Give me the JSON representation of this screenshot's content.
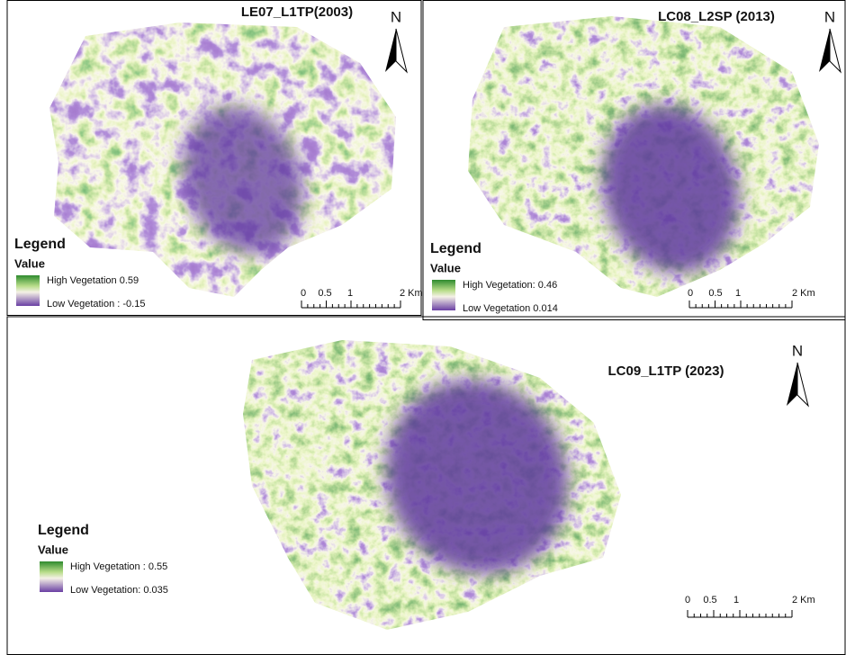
{
  "panels": [
    {
      "title": "LE07_L1TP(2003)",
      "north": "N",
      "legend": {
        "title": "Legend",
        "subtitle": "Value",
        "high": "High Vegetation 0.59",
        "low": "Low Vegetation : -0.15"
      },
      "scale": [
        "0",
        "0.5",
        "1",
        "2 Km"
      ]
    },
    {
      "title": "LC08_L2SP (2013)",
      "north": "N",
      "legend": {
        "title": "Legend",
        "subtitle": "Value",
        "high": "High Vegetation: 0.46",
        "low": "Low Vegetation 0.014"
      },
      "scale": [
        "0",
        "0.5",
        "1",
        "2 Km"
      ]
    },
    {
      "title": "LC09_L1TP (2023)",
      "north": "N",
      "legend": {
        "title": "Legend",
        "subtitle": "Value",
        "high": "High Vegetation : 0.55",
        "low": "Low Vegetation: 0.035"
      },
      "scale": [
        "0",
        "0.5",
        "1",
        "2 Km"
      ]
    }
  ]
}
